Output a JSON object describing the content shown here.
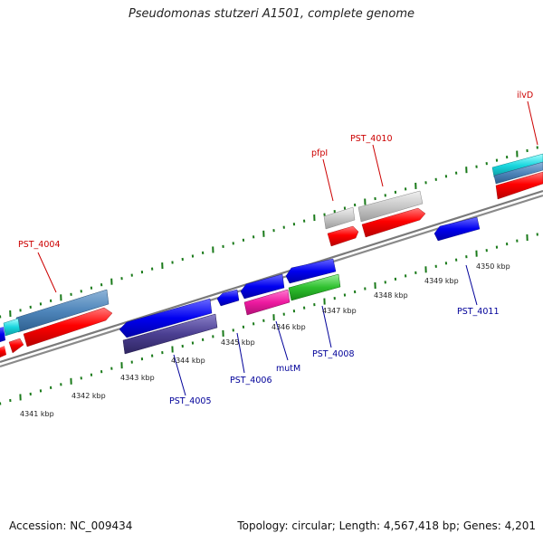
{
  "title": "Pseudomonas stutzeri A1501, complete genome",
  "accession": "Accession: NC_009434",
  "topology": "Topology: circular; Length: 4,567,418 bp; Genes: 4,201",
  "colors": {
    "forward_label": "#cc0000",
    "reverse_label": "#000099",
    "tick": "#1a7a1a",
    "backbone": "#7f7f7f"
  },
  "kbp_labels": [
    "4341 kbp",
    "4342 kbp",
    "4343 kbp",
    "4344 kbp",
    "4345 kbp",
    "4346 kbp",
    "4347 kbp",
    "4348 kbp",
    "4349 kbp",
    "4350 kbp"
  ],
  "forward_labels": [
    "PST_4004",
    "pfpI",
    "PST_4010",
    "ilvD"
  ],
  "reverse_labels": [
    "PST_4005",
    "PST_4006",
    "mutM",
    "PST_4008",
    "PST_4011"
  ]
}
